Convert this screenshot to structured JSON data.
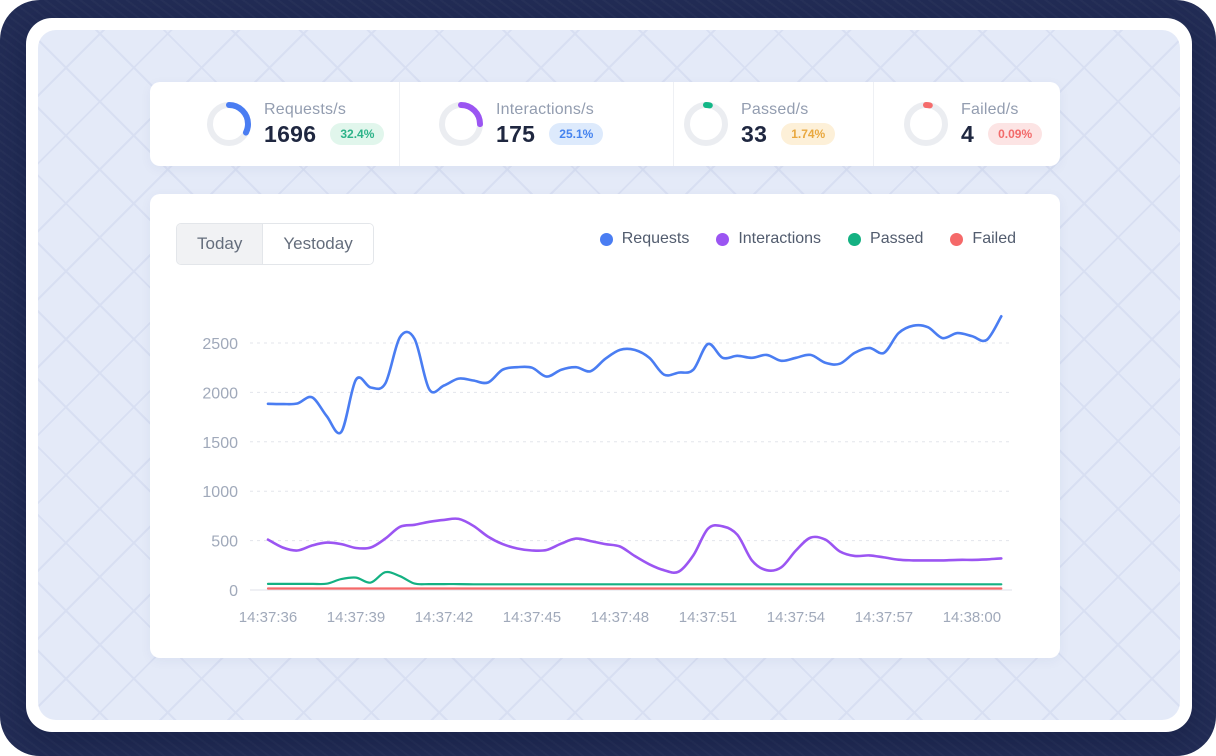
{
  "stats": {
    "items": [
      {
        "label": "Requests/s",
        "value": "1696",
        "badge": "32.4%",
        "ring_pct": 32.4,
        "ring_color": "#4a7df2",
        "badge_bg": "#e1f6ec",
        "badge_fg": "#2db389"
      },
      {
        "label": "Interactions/s",
        "value": "175",
        "badge": "25.1%",
        "ring_pct": 25.1,
        "ring_color": "#9b55f2",
        "badge_bg": "#ddeafc",
        "badge_fg": "#4583ef"
      },
      {
        "label": "Passed/s",
        "value": "33",
        "badge": "1.74%",
        "ring_pct": 1.74,
        "ring_color": "#13b787",
        "badge_bg": "#fdf0d8",
        "badge_fg": "#e9a83f"
      },
      {
        "label": "Failed/s",
        "value": "4",
        "badge": "0.09%",
        "ring_pct": 0.09,
        "ring_color": "#f56c6c",
        "badge_bg": "#fce4e4",
        "badge_fg": "#f26a6a"
      }
    ]
  },
  "tabs": {
    "today": "Today",
    "yesterday": "Yestoday",
    "active": "Today"
  },
  "chart_data": {
    "type": "line",
    "title": "",
    "xlabel": "",
    "ylabel": "",
    "grid": "dashed-horizontal",
    "legend_position": "top-right",
    "y_ticks": [
      0,
      500,
      1000,
      1500,
      2000,
      2500
    ],
    "ylim": [
      0,
      2800
    ],
    "x_tick_labels": [
      "14:37:36",
      "14:37:39",
      "14:37:42",
      "14:37:45",
      "14:37:48",
      "14:37:51",
      "14:37:54",
      "14:37:57",
      "14:38:00"
    ],
    "x_tick_interval_s": 3,
    "x_start_s": 36,
    "sample_interval_s": 0.5,
    "series": [
      {
        "name": "Requests",
        "color": "#4a7df2",
        "values": [
          1885,
          1882,
          1888,
          1950,
          1760,
          1600,
          2130,
          2050,
          2090,
          2560,
          2540,
          2030,
          2070,
          2140,
          2120,
          2100,
          2230,
          2255,
          2250,
          2160,
          2230,
          2255,
          2215,
          2340,
          2430,
          2430,
          2350,
          2180,
          2200,
          2230,
          2490,
          2350,
          2370,
          2350,
          2380,
          2320,
          2350,
          2380,
          2300,
          2290,
          2400,
          2450,
          2400,
          2600,
          2675,
          2660,
          2550,
          2600,
          2570,
          2530,
          2770
        ]
      },
      {
        "name": "Interactions",
        "color": "#9b55f2",
        "values": [
          510,
          430,
          400,
          450,
          480,
          465,
          425,
          430,
          520,
          640,
          660,
          690,
          710,
          720,
          650,
          540,
          465,
          420,
          400,
          405,
          470,
          520,
          495,
          465,
          440,
          345,
          260,
          200,
          185,
          350,
          620,
          645,
          560,
          300,
          200,
          230,
          400,
          530,
          510,
          390,
          345,
          350,
          330,
          307,
          300,
          300,
          300,
          305,
          305,
          310,
          320
        ]
      },
      {
        "name": "Passed",
        "color": "#14b182",
        "values": [
          62,
          62,
          62,
          62,
          64,
          110,
          125,
          75,
          180,
          140,
          65,
          60,
          60,
          60,
          58,
          58,
          58,
          58,
          58,
          58,
          58,
          58,
          58,
          58,
          58,
          58,
          58,
          58,
          58,
          58,
          58,
          58,
          58,
          58,
          58,
          58,
          58,
          58,
          58,
          58,
          58,
          58,
          58,
          58,
          58,
          58,
          58,
          58,
          58,
          58,
          58
        ]
      },
      {
        "name": "Failed",
        "color": "#f56969",
        "values": [
          15,
          15,
          15,
          15,
          15,
          15,
          15,
          15,
          15,
          15,
          15,
          15,
          15,
          15,
          15,
          15,
          15,
          15,
          15,
          15,
          15,
          15,
          15,
          15,
          15,
          15,
          15,
          15,
          15,
          15,
          15,
          15,
          15,
          15,
          15,
          15,
          15,
          15,
          15,
          15,
          15,
          15,
          15,
          15,
          15,
          15,
          15,
          15,
          15,
          15,
          15
        ]
      }
    ]
  }
}
